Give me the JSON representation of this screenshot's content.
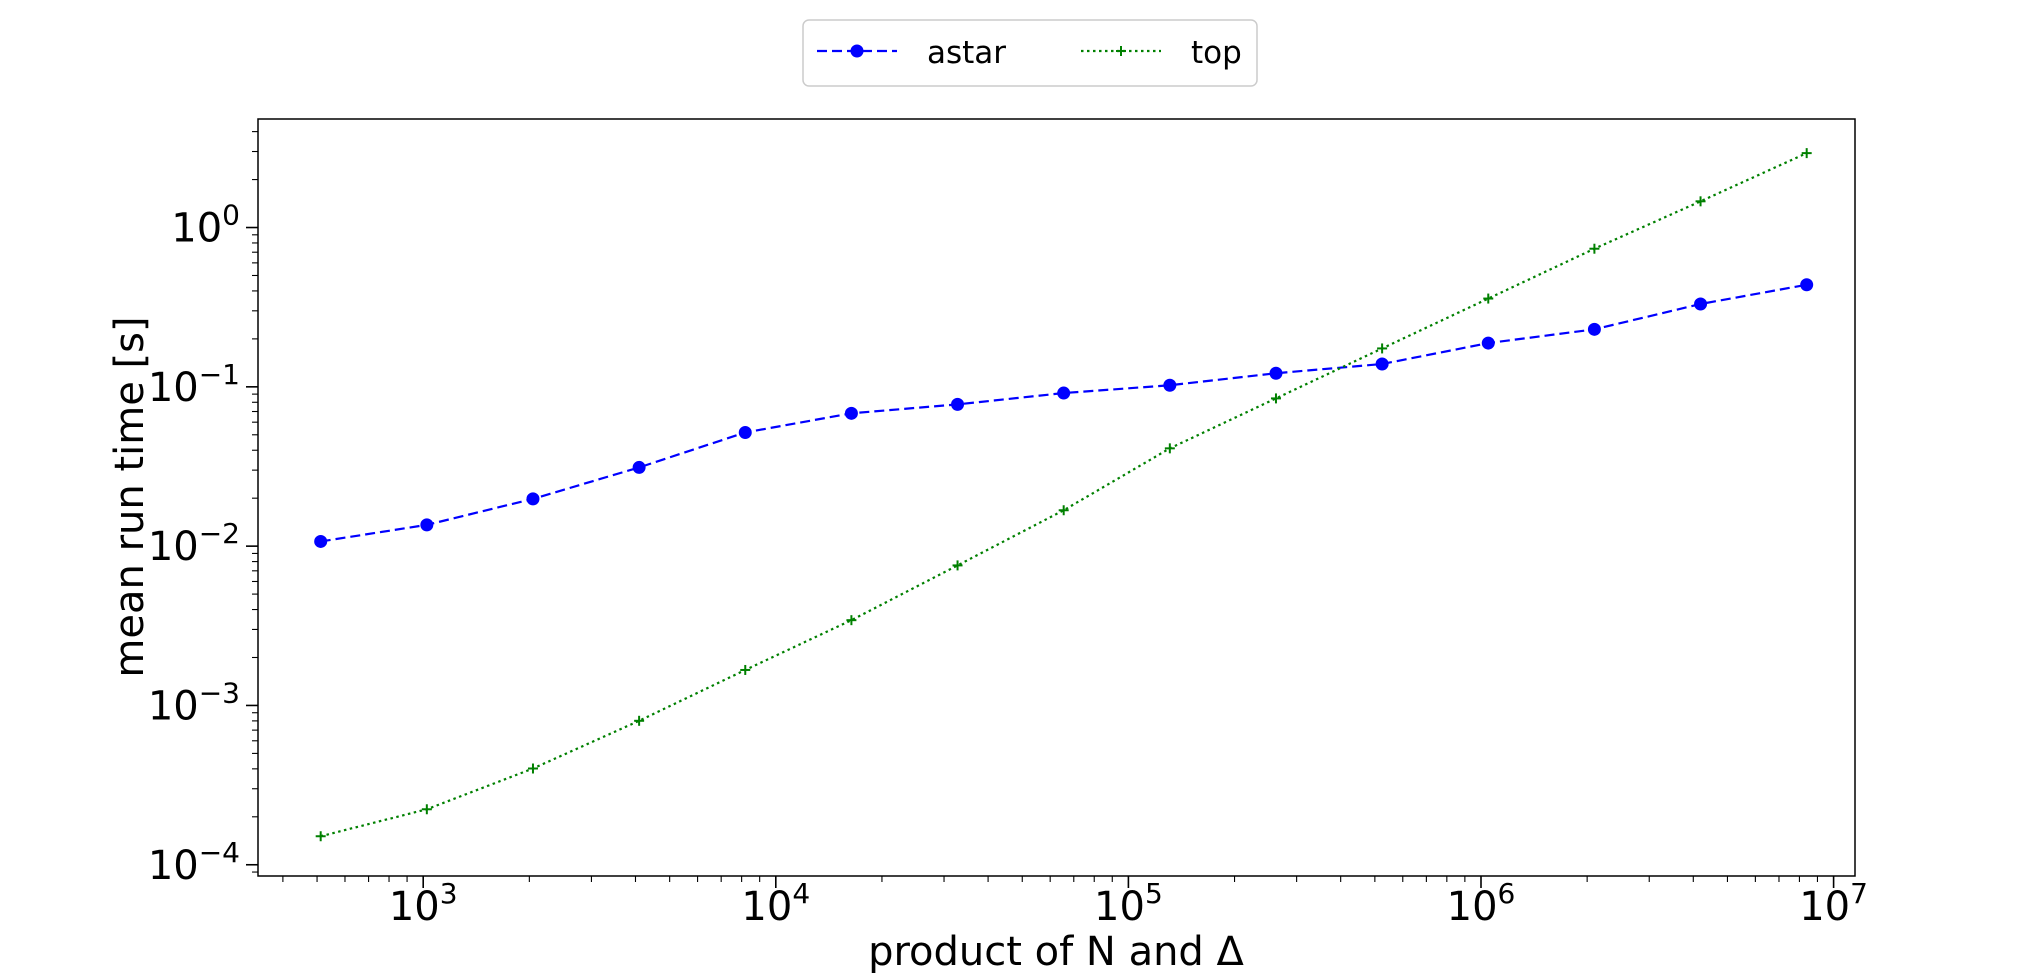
{
  "chart_data": {
    "type": "line",
    "xlabel": "product of N and Δ",
    "ylabel": "mean run time [s]",
    "xscale": "log",
    "yscale": "log",
    "xlim": [
      340,
      11500000
    ],
    "ylim": [
      8.5e-05,
      4.8
    ],
    "grid": false,
    "legend_position": "top-center (outside plot, single row)",
    "x_ticks": [
      {
        "value": 1000,
        "base": "10",
        "exp": "3"
      },
      {
        "value": 10000,
        "base": "10",
        "exp": "4"
      },
      {
        "value": 100000,
        "base": "10",
        "exp": "5"
      },
      {
        "value": 1000000,
        "base": "10",
        "exp": "6"
      },
      {
        "value": 10000000,
        "base": "10",
        "exp": "7"
      }
    ],
    "y_ticks": [
      {
        "value": 0.0001,
        "base": "10",
        "exp": "−4"
      },
      {
        "value": 0.001,
        "base": "10",
        "exp": "−3"
      },
      {
        "value": 0.01,
        "base": "10",
        "exp": "−2"
      },
      {
        "value": 0.1,
        "base": "10",
        "exp": "−1"
      },
      {
        "value": 1,
        "base": "10",
        "exp": "0"
      }
    ],
    "x": [
      512,
      1024,
      2048,
      4096,
      8192,
      16384,
      32768,
      65536,
      131072,
      262144,
      524288,
      1048576,
      2097152,
      4194304,
      8388608
    ],
    "series": [
      {
        "name": "astar",
        "color": "#0000ff",
        "line_style": "dashed",
        "marker": "circle",
        "values": [
          0.0107,
          0.0136,
          0.0198,
          0.0312,
          0.0517,
          0.0682,
          0.0776,
          0.0914,
          0.1023,
          0.1217,
          0.1391,
          0.1882,
          0.2296,
          0.3311,
          0.4373
        ]
      },
      {
        "name": "top",
        "color": "#008000",
        "line_style": "dotted",
        "marker": "plus",
        "values": [
          0.000151,
          0.000223,
          0.000402,
          0.000801,
          0.00167,
          0.00343,
          0.00757,
          0.0168,
          0.0411,
          0.0846,
          0.1742,
          0.3582,
          0.7362,
          1.4606,
          2.9315
        ]
      }
    ]
  }
}
